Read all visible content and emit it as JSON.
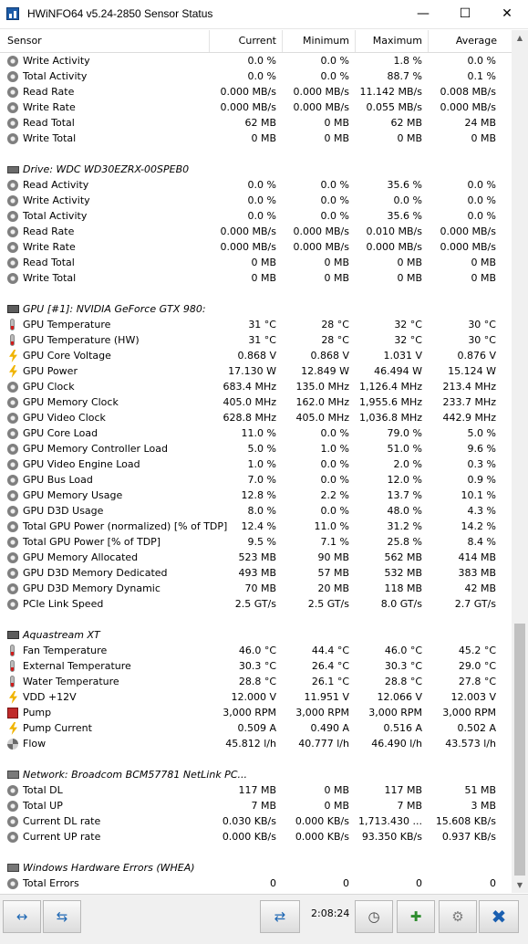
{
  "window": {
    "title": "HWiNFO64 v5.24-2850 Sensor Status",
    "minimize_glyph": "—",
    "maximize_glyph": "☐",
    "close_glyph": "✕"
  },
  "header": {
    "sensor": "Sensor",
    "current": "Current",
    "minimum": "Minimum",
    "maximum": "Maximum",
    "average": "Average"
  },
  "rows": [
    {
      "type": "item",
      "icon": "gauge-icon",
      "name": "Write Activity",
      "cur": "0.0 %",
      "min": "0.0 %",
      "max": "1.8 %",
      "avg": "0.0 %"
    },
    {
      "type": "item",
      "icon": "gauge-icon",
      "name": "Total Activity",
      "cur": "0.0 %",
      "min": "0.0 %",
      "max": "88.7 %",
      "avg": "0.1 %"
    },
    {
      "type": "item",
      "icon": "gauge-icon",
      "name": "Read Rate",
      "cur": "0.000 MB/s",
      "min": "0.000 MB/s",
      "max": "11.142 MB/s",
      "avg": "0.008 MB/s"
    },
    {
      "type": "item",
      "icon": "gauge-icon",
      "name": "Write Rate",
      "cur": "0.000 MB/s",
      "min": "0.000 MB/s",
      "max": "0.055 MB/s",
      "avg": "0.000 MB/s"
    },
    {
      "type": "item",
      "icon": "gauge-icon",
      "name": "Read Total",
      "cur": "62 MB",
      "min": "0 MB",
      "max": "62 MB",
      "avg": "24 MB"
    },
    {
      "type": "item",
      "icon": "gauge-icon",
      "name": "Write Total",
      "cur": "0 MB",
      "min": "0 MB",
      "max": "0 MB",
      "avg": "0 MB"
    },
    {
      "type": "blank"
    },
    {
      "type": "group",
      "icon": "drive-icon",
      "name": "Drive: WDC WD30EZRX-00SPEB0"
    },
    {
      "type": "item",
      "icon": "gauge-icon",
      "name": "Read Activity",
      "cur": "0.0 %",
      "min": "0.0 %",
      "max": "35.6 %",
      "avg": "0.0 %"
    },
    {
      "type": "item",
      "icon": "gauge-icon",
      "name": "Write Activity",
      "cur": "0.0 %",
      "min": "0.0 %",
      "max": "0.0 %",
      "avg": "0.0 %"
    },
    {
      "type": "item",
      "icon": "gauge-icon",
      "name": "Total Activity",
      "cur": "0.0 %",
      "min": "0.0 %",
      "max": "35.6 %",
      "avg": "0.0 %"
    },
    {
      "type": "item",
      "icon": "gauge-icon",
      "name": "Read Rate",
      "cur": "0.000 MB/s",
      "min": "0.000 MB/s",
      "max": "0.010 MB/s",
      "avg": "0.000 MB/s"
    },
    {
      "type": "item",
      "icon": "gauge-icon",
      "name": "Write Rate",
      "cur": "0.000 MB/s",
      "min": "0.000 MB/s",
      "max": "0.000 MB/s",
      "avg": "0.000 MB/s"
    },
    {
      "type": "item",
      "icon": "gauge-icon",
      "name": "Read Total",
      "cur": "0 MB",
      "min": "0 MB",
      "max": "0 MB",
      "avg": "0 MB"
    },
    {
      "type": "item",
      "icon": "gauge-icon",
      "name": "Write Total",
      "cur": "0 MB",
      "min": "0 MB",
      "max": "0 MB",
      "avg": "0 MB"
    },
    {
      "type": "blank"
    },
    {
      "type": "group",
      "icon": "chip-icon",
      "name": "GPU [#1]: NVIDIA GeForce GTX 980:"
    },
    {
      "type": "item",
      "icon": "thermometer-icon",
      "name": "GPU Temperature",
      "cur": "31 °C",
      "min": "28 °C",
      "max": "32 °C",
      "avg": "30 °C"
    },
    {
      "type": "item",
      "icon": "thermometer-icon",
      "name": "GPU Temperature (HW)",
      "cur": "31 °C",
      "min": "28 °C",
      "max": "32 °C",
      "avg": "30 °C"
    },
    {
      "type": "item",
      "icon": "voltage-icon",
      "name": "GPU Core Voltage",
      "cur": "0.868 V",
      "min": "0.868 V",
      "max": "1.031 V",
      "avg": "0.876 V"
    },
    {
      "type": "item",
      "icon": "voltage-icon",
      "name": "GPU Power",
      "cur": "17.130 W",
      "min": "12.849 W",
      "max": "46.494 W",
      "avg": "15.124 W"
    },
    {
      "type": "item",
      "icon": "gauge-icon",
      "name": "GPU Clock",
      "cur": "683.4 MHz",
      "min": "135.0 MHz",
      "max": "1,126.4 MHz",
      "avg": "213.4 MHz"
    },
    {
      "type": "item",
      "icon": "gauge-icon",
      "name": "GPU Memory Clock",
      "cur": "405.0 MHz",
      "min": "162.0 MHz",
      "max": "1,955.6 MHz",
      "avg": "233.7 MHz"
    },
    {
      "type": "item",
      "icon": "gauge-icon",
      "name": "GPU Video Clock",
      "cur": "628.8 MHz",
      "min": "405.0 MHz",
      "max": "1,036.8 MHz",
      "avg": "442.9 MHz"
    },
    {
      "type": "item",
      "icon": "gauge-icon",
      "name": "GPU Core Load",
      "cur": "11.0 %",
      "min": "0.0 %",
      "max": "79.0 %",
      "avg": "5.0 %"
    },
    {
      "type": "item",
      "icon": "gauge-icon",
      "name": "GPU Memory Controller Load",
      "cur": "5.0 %",
      "min": "1.0 %",
      "max": "51.0 %",
      "avg": "9.6 %"
    },
    {
      "type": "item",
      "icon": "gauge-icon",
      "name": "GPU Video Engine Load",
      "cur": "1.0 %",
      "min": "0.0 %",
      "max": "2.0 %",
      "avg": "0.3 %"
    },
    {
      "type": "item",
      "icon": "gauge-icon",
      "name": "GPU Bus Load",
      "cur": "7.0 %",
      "min": "0.0 %",
      "max": "12.0 %",
      "avg": "0.9 %"
    },
    {
      "type": "item",
      "icon": "gauge-icon",
      "name": "GPU Memory Usage",
      "cur": "12.8 %",
      "min": "2.2 %",
      "max": "13.7 %",
      "avg": "10.1 %"
    },
    {
      "type": "item",
      "icon": "gauge-icon",
      "name": "GPU D3D Usage",
      "cur": "8.0 %",
      "min": "0.0 %",
      "max": "48.0 %",
      "avg": "4.3 %"
    },
    {
      "type": "item",
      "icon": "gauge-icon",
      "name": "Total GPU Power (normalized) [% of TDP]",
      "cur": "12.4 %",
      "min": "11.0 %",
      "max": "31.2 %",
      "avg": "14.2 %"
    },
    {
      "type": "item",
      "icon": "gauge-icon",
      "name": "Total GPU Power [% of TDP]",
      "cur": "9.5 %",
      "min": "7.1 %",
      "max": "25.8 %",
      "avg": "8.4 %"
    },
    {
      "type": "item",
      "icon": "gauge-icon",
      "name": "GPU Memory Allocated",
      "cur": "523 MB",
      "min": "90 MB",
      "max": "562 MB",
      "avg": "414 MB"
    },
    {
      "type": "item",
      "icon": "gauge-icon",
      "name": "GPU D3D Memory Dedicated",
      "cur": "493 MB",
      "min": "57 MB",
      "max": "532 MB",
      "avg": "383 MB"
    },
    {
      "type": "item",
      "icon": "gauge-icon",
      "name": "GPU D3D Memory Dynamic",
      "cur": "70 MB",
      "min": "20 MB",
      "max": "118 MB",
      "avg": "42 MB"
    },
    {
      "type": "item",
      "icon": "gauge-icon",
      "name": "PCIe Link Speed",
      "cur": "2.5 GT/s",
      "min": "2.5 GT/s",
      "max": "8.0 GT/s",
      "avg": "2.7 GT/s"
    },
    {
      "type": "blank"
    },
    {
      "type": "group",
      "icon": "chip-icon",
      "name": "Aquastream XT"
    },
    {
      "type": "item",
      "icon": "thermometer-icon",
      "name": "Fan Temperature",
      "cur": "46.0 °C",
      "min": "44.4 °C",
      "max": "46.0 °C",
      "avg": "45.2 °C"
    },
    {
      "type": "item",
      "icon": "thermometer-icon",
      "name": "External Temperature",
      "cur": "30.3 °C",
      "min": "26.4 °C",
      "max": "30.3 °C",
      "avg": "29.0 °C"
    },
    {
      "type": "item",
      "icon": "thermometer-icon",
      "name": "Water Temperature",
      "cur": "28.8 °C",
      "min": "26.1 °C",
      "max": "28.8 °C",
      "avg": "27.8 °C"
    },
    {
      "type": "item",
      "icon": "voltage-icon",
      "name": "VDD +12V",
      "cur": "12.000 V",
      "min": "11.951 V",
      "max": "12.066 V",
      "avg": "12.003 V"
    },
    {
      "type": "item",
      "icon": "pump-icon",
      "name": "Pump",
      "cur": "3,000 RPM",
      "min": "3,000 RPM",
      "max": "3,000 RPM",
      "avg": "3,000 RPM"
    },
    {
      "type": "item",
      "icon": "voltage-icon",
      "name": "Pump Current",
      "cur": "0.509 A",
      "min": "0.490 A",
      "max": "0.516 A",
      "avg": "0.502 A"
    },
    {
      "type": "item",
      "icon": "fan-icon",
      "name": "Flow",
      "cur": "45.812 l/h",
      "min": "40.777 l/h",
      "max": "46.490 l/h",
      "avg": "43.573 l/h"
    },
    {
      "type": "blank"
    },
    {
      "type": "group",
      "icon": "network-icon",
      "name": "Network: Broadcom BCM57781 NetLink PC..."
    },
    {
      "type": "item",
      "icon": "gauge-icon",
      "name": "Total DL",
      "cur": "117 MB",
      "min": "0 MB",
      "max": "117 MB",
      "avg": "51 MB"
    },
    {
      "type": "item",
      "icon": "gauge-icon",
      "name": "Total UP",
      "cur": "7 MB",
      "min": "0 MB",
      "max": "7 MB",
      "avg": "3 MB"
    },
    {
      "type": "item",
      "icon": "gauge-icon",
      "name": "Current DL rate",
      "cur": "0.030 KB/s",
      "min": "0.000 KB/s",
      "max": "1,713.430 ...",
      "avg": "15.608 KB/s"
    },
    {
      "type": "item",
      "icon": "gauge-icon",
      "name": "Current UP rate",
      "cur": "0.000 KB/s",
      "min": "0.000 KB/s",
      "max": "93.350 KB/s",
      "avg": "0.937 KB/s"
    },
    {
      "type": "blank"
    },
    {
      "type": "group",
      "icon": "warning-icon",
      "name": "Windows Hardware Errors (WHEA)"
    },
    {
      "type": "item",
      "icon": "gauge-icon",
      "name": "Total Errors",
      "cur": "0",
      "min": "0",
      "max": "0",
      "avg": "0"
    }
  ],
  "scrollbar": {
    "up_glyph": "▲",
    "down_glyph": "▼"
  },
  "toolbar": {
    "arrows_expand_glyph": "↔",
    "arrows_collapse_glyph": "⇆",
    "network_glyph": "⇄",
    "timer": "2:08:24",
    "clock_glyph": "◷",
    "report_glyph": "✚",
    "settings_glyph": "⚙",
    "close_glyph": "✖"
  }
}
